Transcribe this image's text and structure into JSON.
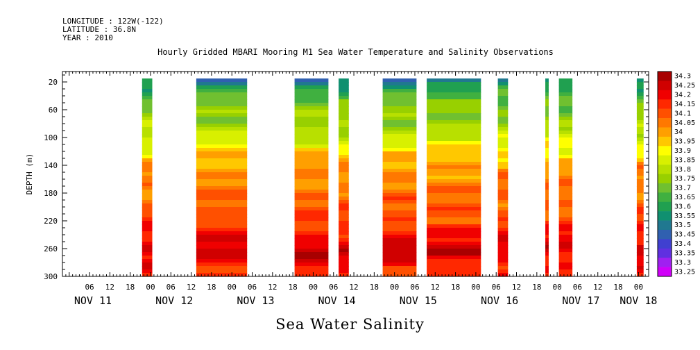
{
  "header": {
    "longitude": "LONGITUDE : 122W(-122)",
    "latitude": "LATITUDE : 36.8N",
    "year": "YEAR : 2010"
  },
  "chart_data": {
    "type": "heatmap",
    "title": "Hourly Gridded MBARI Mooring M1 Sea Water Temperature and Salinity Observations",
    "subtitle": "Sea Water Salinity",
    "ylabel": "DEPTH (m)",
    "ylim": [
      300,
      5
    ],
    "y_ticks": [
      20,
      60,
      100,
      140,
      180,
      220,
      260,
      300
    ],
    "x_hour_ticks": [
      {
        "h": 6,
        "label": "06"
      },
      {
        "h": 12,
        "label": "12"
      },
      {
        "h": 18,
        "label": "18"
      },
      {
        "h": 24,
        "label": "00"
      },
      {
        "h": 30,
        "label": "06"
      },
      {
        "h": 36,
        "label": "12"
      },
      {
        "h": 42,
        "label": "18"
      },
      {
        "h": 48,
        "label": "00"
      },
      {
        "h": 54,
        "label": "06"
      },
      {
        "h": 60,
        "label": "12"
      },
      {
        "h": 66,
        "label": "18"
      },
      {
        "h": 72,
        "label": "00"
      },
      {
        "h": 78,
        "label": "06"
      },
      {
        "h": 84,
        "label": "12"
      },
      {
        "h": 90,
        "label": "18"
      },
      {
        "h": 96,
        "label": "00"
      },
      {
        "h": 102,
        "label": "06"
      },
      {
        "h": 108,
        "label": "12"
      },
      {
        "h": 114,
        "label": "18"
      },
      {
        "h": 120,
        "label": "00"
      },
      {
        "h": 126,
        "label": "06"
      },
      {
        "h": 132,
        "label": "12"
      },
      {
        "h": 138,
        "label": "18"
      },
      {
        "h": 144,
        "label": "00"
      },
      {
        "h": 150,
        "label": "06"
      },
      {
        "h": 156,
        "label": "12"
      },
      {
        "h": 162,
        "label": "18"
      },
      {
        "h": 168,
        "label": "00"
      }
    ],
    "x_day_labels": [
      {
        "h": 7,
        "label": "NOV 11"
      },
      {
        "h": 31,
        "label": "NOV 12"
      },
      {
        "h": 55,
        "label": "NOV 13"
      },
      {
        "h": 79,
        "label": "NOV 14"
      },
      {
        "h": 103,
        "label": "NOV 15"
      },
      {
        "h": 127,
        "label": "NOV 16"
      },
      {
        "h": 151,
        "label": "NOV 17"
      },
      {
        "h": 168,
        "label": "NOV 18"
      }
    ],
    "xlim": [
      -2,
      171
    ],
    "colorbar": {
      "levels": [
        "34.3",
        "34.25",
        "34.2",
        "34.15",
        "34.1",
        "34.05",
        "34",
        "33.95",
        "33.9",
        "33.85",
        "33.8",
        "33.75",
        "33.7",
        "33.65",
        "33.6",
        "33.55",
        "33.5",
        "33.45",
        "33.4",
        "33.35",
        "33.3",
        "33.25"
      ],
      "colors": [
        "#a80000",
        "#d00000",
        "#f00000",
        "#ff2800",
        "#ff5000",
        "#ff7800",
        "#ff9f00",
        "#ffc800",
        "#ffff00",
        "#d8f000",
        "#b8e000",
        "#98d000",
        "#70c030",
        "#40b040",
        "#20a050",
        "#109070",
        "#207890",
        "#3060b0",
        "#4040d0",
        "#6030e0",
        "#a020f0",
        "#d000f8"
      ]
    },
    "segments": [
      {
        "start": 21.5,
        "end": 24.5
      },
      {
        "start": 37.5,
        "end": 52.5
      },
      {
        "start": 66.5,
        "end": 76.5
      },
      {
        "start": 79.5,
        "end": 82.5
      },
      {
        "start": 92.5,
        "end": 102.5
      },
      {
        "start": 105.5,
        "end": 121.5
      },
      {
        "start": 126.5,
        "end": 129.5
      },
      {
        "start": 140.5,
        "end": 141.5
      },
      {
        "start": 144.5,
        "end": 148.5
      },
      {
        "start": 167.5,
        "end": 169.5
      }
    ],
    "profile": [
      {
        "depth": 15,
        "salinity": 33.55
      },
      {
        "depth": 25,
        "salinity": 33.62
      },
      {
        "depth": 40,
        "salinity": 33.7
      },
      {
        "depth": 60,
        "salinity": 33.76
      },
      {
        "depth": 80,
        "salinity": 33.8
      },
      {
        "depth": 95,
        "salinity": 33.85
      },
      {
        "depth": 110,
        "salinity": 33.9
      },
      {
        "depth": 122,
        "salinity": 33.96
      },
      {
        "depth": 135,
        "salinity": 34.02
      },
      {
        "depth": 150,
        "salinity": 34.06
      },
      {
        "depth": 190,
        "salinity": 34.09
      },
      {
        "depth": 210,
        "salinity": 34.13
      },
      {
        "depth": 225,
        "salinity": 34.17
      },
      {
        "depth": 245,
        "salinity": 34.22
      },
      {
        "depth": 260,
        "salinity": 34.27
      },
      {
        "depth": 275,
        "salinity": 34.22
      },
      {
        "depth": 300,
        "salinity": 34.17
      }
    ]
  }
}
